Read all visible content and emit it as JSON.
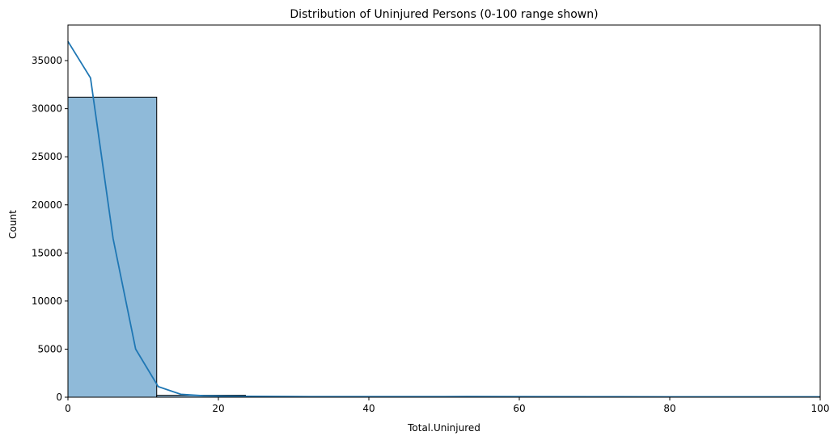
{
  "chart_data": {
    "type": "histogram",
    "title": "Distribution of Uninjured Persons (0-100 range shown)",
    "xlabel": "Total.Uninjured",
    "ylabel": "Count",
    "xlim": [
      0,
      100
    ],
    "ylim": [
      0,
      38700
    ],
    "xticks": [
      0,
      20,
      40,
      60,
      80,
      100
    ],
    "yticks": [
      0,
      5000,
      10000,
      15000,
      20000,
      25000,
      30000,
      35000
    ],
    "grid": false,
    "legend": false,
    "bins": [
      {
        "x0": 0,
        "x1": 11.8,
        "count": 31200
      },
      {
        "x0": 11.8,
        "x1": 23.6,
        "count": 200
      },
      {
        "x0": 23.6,
        "x1": 35.4,
        "count": 40
      },
      {
        "x0": 35.4,
        "x1": 47.2,
        "count": 15
      },
      {
        "x0": 47.2,
        "x1": 59.0,
        "count": 10
      },
      {
        "x0": 59.0,
        "x1": 70.8,
        "count": 6
      },
      {
        "x0": 70.8,
        "x1": 82.6,
        "count": 4
      },
      {
        "x0": 82.6,
        "x1": 94.4,
        "count": 3
      },
      {
        "x0": 94.4,
        "x1": 106.2,
        "count": 2
      }
    ],
    "kde": {
      "x": [
        0,
        3,
        6,
        9,
        12,
        15,
        18,
        21,
        24,
        30,
        40,
        50,
        53,
        60,
        70,
        80,
        90,
        100
      ],
      "y": [
        37000,
        33200,
        16500,
        5000,
        1100,
        300,
        150,
        110,
        90,
        70,
        60,
        55,
        70,
        55,
        50,
        45,
        45,
        45
      ]
    },
    "colors": {
      "bar_fill": "#8fbad9",
      "bar_edge": "#000000",
      "kde_line": "#1f77b4"
    }
  }
}
